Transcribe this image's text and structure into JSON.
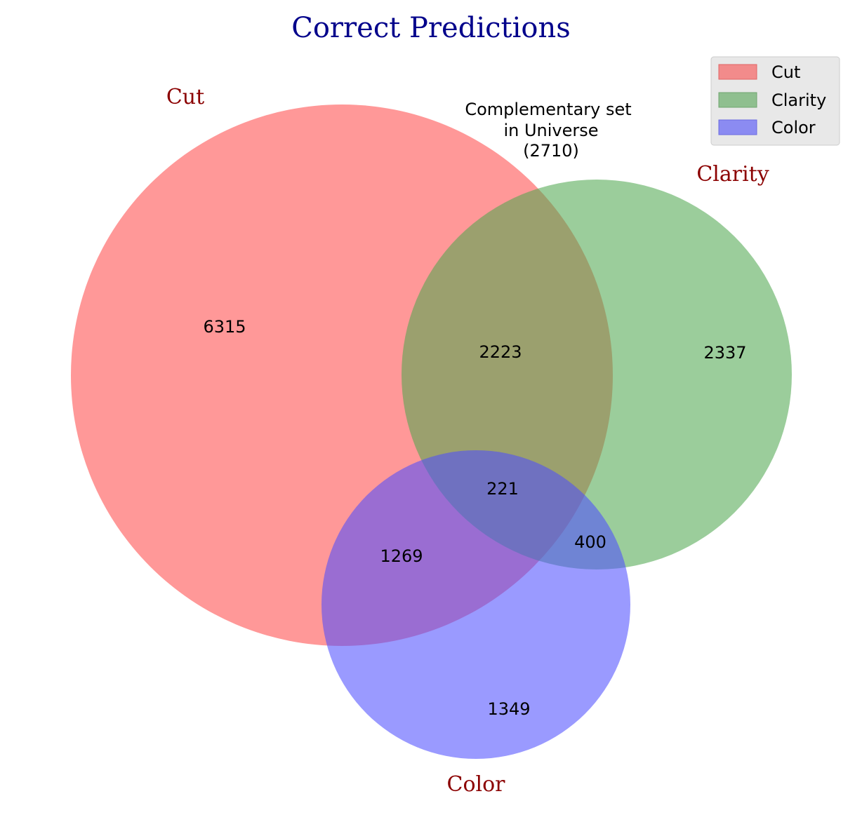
{
  "title": "Correct Predictions",
  "sets": [
    {
      "name": "Cut",
      "color": "#ff4d4d"
    },
    {
      "name": "Clarity",
      "color": "#4ca64c"
    },
    {
      "name": "Color",
      "color": "#4d4dff"
    }
  ],
  "regions": {
    "cut_only": "6315",
    "clarity_only": "2337",
    "color_only": "1349",
    "cut_clarity": "2223",
    "cut_color": "1269",
    "clarity_color": "400",
    "cut_clarity_color": "221"
  },
  "complement": {
    "line1": "Complementary set",
    "line2": "in Universe",
    "line3": "(2710)"
  },
  "legend": [
    {
      "label": "Cut",
      "color": "#f28b8b"
    },
    {
      "label": "Clarity",
      "color": "#8fbf8f"
    },
    {
      "label": "Color",
      "color": "#8b8bf2"
    }
  ]
}
